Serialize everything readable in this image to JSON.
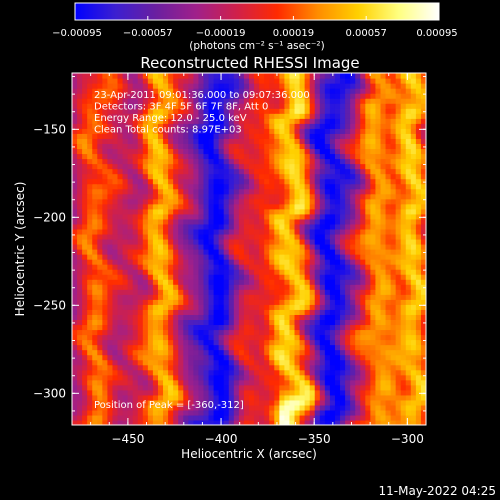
{
  "chart_data": {
    "type": "heatmap",
    "title": "Reconstructed RHESSI Image",
    "xlabel": "Heliocentric X (arcsec)",
    "ylabel": "Heliocentric Y (arcsec)",
    "xlim": [
      -480,
      -290
    ],
    "ylim": [
      -318,
      -118
    ],
    "x_ticks": [
      -450,
      -400,
      -350,
      -300
    ],
    "y_ticks": [
      -150,
      -200,
      -250,
      -300
    ],
    "x_tick_labels": [
      "−450",
      "−400",
      "−350",
      "−300"
    ],
    "y_tick_labels": [
      "−150",
      "−200",
      "−250",
      "−300"
    ],
    "colorbar": {
      "min": -0.00095,
      "max": 0.00095,
      "tick_labels": [
        "−0.00095",
        "−0.00057",
        "−0.00019",
        "0.00019",
        "0.00057",
        "0.00095"
      ],
      "units_label": "(photons cm⁻² s⁻¹ asec⁻²)",
      "colormap": [
        "#0000ff",
        "#3c1fd0",
        "#6a1fa0",
        "#a0208a",
        "#d0204a",
        "#ff2a00",
        "#ff8c00",
        "#ffd000",
        "#ffff80",
        "#ffffff"
      ]
    },
    "annotations": [
      "23-Apr-2011 09:01:36.000 to 09:07:36.000",
      "Detectors: 3F 4F 5F 6F 7F 8F, Att 0",
      "Energy Range: 12.0 - 25.0 keV",
      "Clean     Total counts: 8.97E+03"
    ],
    "peak_label": "Position of Peak = [-360,-312]",
    "peak": {
      "x": -360,
      "y": -312
    },
    "stripes": [
      {
        "x_center": -467,
        "amplitude": 0.0006
      },
      {
        "x_center": -433,
        "amplitude": 0.0008
      },
      {
        "x_center": -402,
        "amplitude": -0.0006
      },
      {
        "x_center": -385,
        "amplitude": 0.0004
      },
      {
        "x_center": -362,
        "amplitude": 0.00095
      },
      {
        "x_center": -341,
        "amplitude": -0.0006
      },
      {
        "x_center": -318,
        "amplitude": 0.0007
      },
      {
        "x_center": -297,
        "amplitude": 0.00085
      }
    ]
  },
  "footer_date": "11-May-2022 04:25"
}
